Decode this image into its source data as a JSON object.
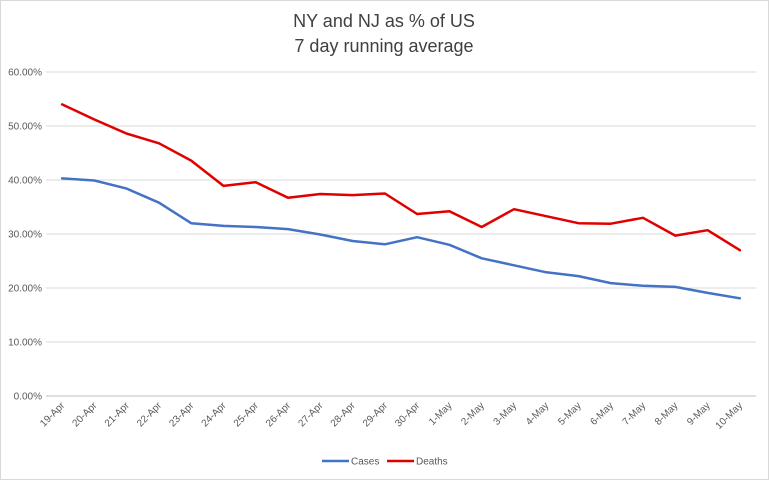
{
  "chart_data": {
    "type": "line",
    "title": "NY and NJ as % of US",
    "subtitle": "7 day running average",
    "xlabel": "",
    "ylabel": "",
    "categories": [
      "19-Apr",
      "20-Apr",
      "21-Apr",
      "22-Apr",
      "23-Apr",
      "24-Apr",
      "25-Apr",
      "26-Apr",
      "27-Apr",
      "28-Apr",
      "29-Apr",
      "30-Apr",
      "1-May",
      "2-May",
      "3-May",
      "4-May",
      "5-May",
      "6-May",
      "7-May",
      "8-May",
      "9-May",
      "10-May"
    ],
    "ylim": [
      0,
      0.6
    ],
    "yticks": [
      "0.00%",
      "10.00%",
      "20.00%",
      "30.00%",
      "40.00%",
      "50.00%",
      "60.00%"
    ],
    "grid": true,
    "legend_position": "bottom",
    "series": [
      {
        "name": "Cases",
        "color": "#4472c4",
        "values": [
          0.403,
          0.399,
          0.384,
          0.358,
          0.32,
          0.315,
          0.313,
          0.309,
          0.299,
          0.287,
          0.281,
          0.294,
          0.28,
          0.255,
          0.242,
          0.229,
          0.222,
          0.209,
          0.204,
          0.202,
          0.191,
          0.181
        ]
      },
      {
        "name": "Deaths",
        "color": "#e00000",
        "values": [
          0.54,
          0.512,
          0.486,
          0.468,
          0.436,
          0.389,
          0.396,
          0.367,
          0.374,
          0.372,
          0.375,
          0.337,
          0.342,
          0.313,
          0.346,
          0.333,
          0.32,
          0.319,
          0.33,
          0.297,
          0.307,
          0.27
        ]
      }
    ]
  }
}
